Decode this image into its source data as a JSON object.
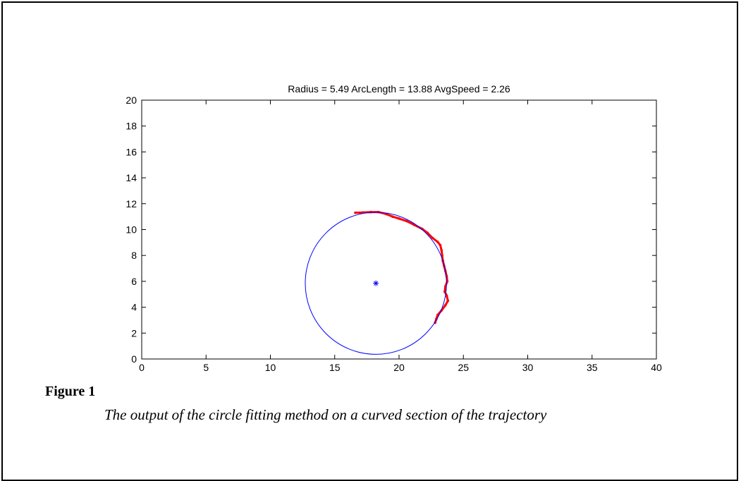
{
  "figure": {
    "label": "Figure 1",
    "caption": "The output of the circle fitting method on a curved section of the trajectory"
  },
  "chart_data": {
    "type": "scatter",
    "title": "Radius = 5.49 ArcLength = 13.88 AvgSpeed = 2.26",
    "xlabel": "",
    "ylabel": "",
    "xlim": [
      0,
      40
    ],
    "ylim": [
      0,
      20
    ],
    "xticks": [
      0,
      5,
      10,
      15,
      20,
      25,
      30,
      35,
      40
    ],
    "yticks": [
      0,
      2,
      4,
      6,
      8,
      10,
      12,
      14,
      16,
      18,
      20
    ],
    "grid": false,
    "colors": {
      "circle": "#0000ff",
      "center": "#0000ff",
      "trajectory": "#ff0000"
    },
    "circle": {
      "center": [
        18.2,
        5.85
      ],
      "radius": 5.49
    },
    "center_marker": {
      "x": 18.2,
      "y": 5.85,
      "marker": "*"
    },
    "trajectory": {
      "x": [
        16.6,
        17.2,
        17.8,
        18.4,
        19.0,
        19.5,
        20.0,
        20.6,
        21.2,
        21.8,
        22.2,
        22.6,
        23.0,
        23.2,
        23.3,
        23.35,
        23.4,
        23.5,
        23.6,
        23.7,
        23.75,
        23.6,
        23.55,
        23.7,
        23.8,
        23.6,
        23.3,
        23.0,
        22.9,
        22.8
      ],
      "y": [
        11.3,
        11.32,
        11.35,
        11.35,
        11.2,
        11.0,
        10.85,
        10.65,
        10.35,
        10.05,
        9.75,
        9.35,
        9.05,
        8.8,
        8.4,
        8.0,
        7.6,
        7.2,
        6.8,
        6.4,
        6.0,
        5.6,
        5.2,
        4.9,
        4.5,
        4.15,
        3.75,
        3.4,
        3.1,
        2.8
      ]
    }
  }
}
